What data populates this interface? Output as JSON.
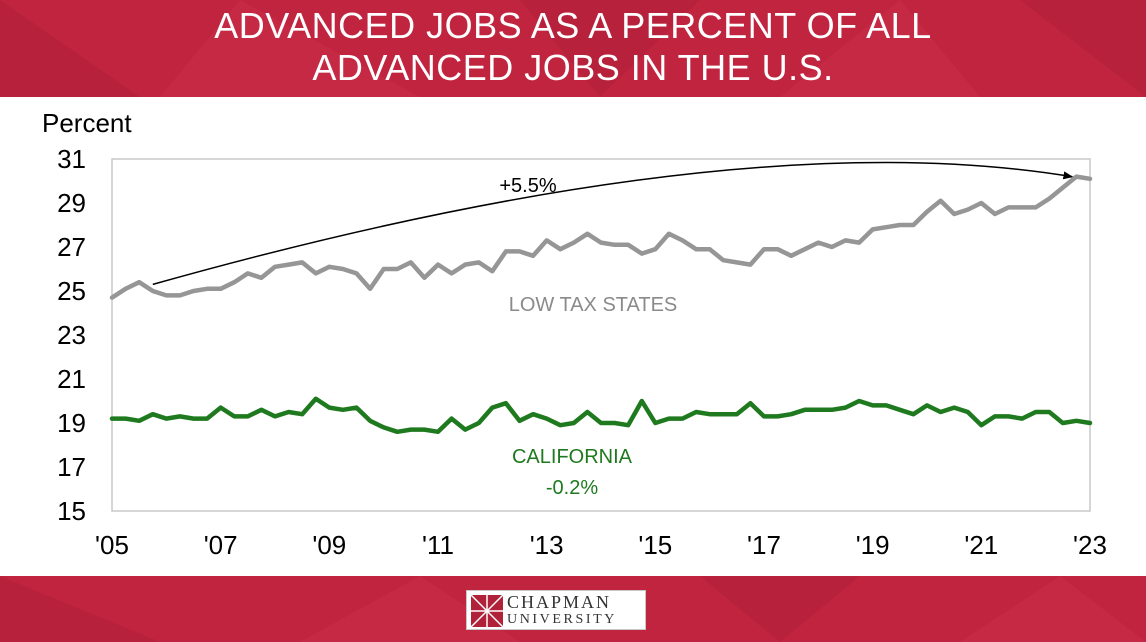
{
  "header": {
    "title_line1": "ADVANCED JOBS AS A PERCENT OF ALL",
    "title_line2": "ADVANCED JOBS IN THE U.S."
  },
  "footer": {
    "logo_line1": "CHAPMAN",
    "logo_line2": "UNIVERSITY"
  },
  "colors": {
    "banner": "#c0243f",
    "low_tax_series": "#969696",
    "california_series": "#1f7a1f",
    "annotation_arrow": "#000000"
  },
  "chart_data": {
    "type": "line",
    "title": "ADVANCED JOBS AS A PERCENT OF ALL ADVANCED JOBS IN THE U.S.",
    "ylabel": "Percent",
    "xlabel": "",
    "ylim": [
      15,
      31
    ],
    "xlim": [
      2005,
      2023
    ],
    "yticks": [
      "15",
      "17",
      "19",
      "21",
      "23",
      "25",
      "27",
      "29",
      "31"
    ],
    "xticks": [
      {
        "year": 2005,
        "label": "'05"
      },
      {
        "year": 2007,
        "label": "'07"
      },
      {
        "year": 2009,
        "label": "'09"
      },
      {
        "year": 2011,
        "label": "'11"
      },
      {
        "year": 2013,
        "label": "'13"
      },
      {
        "year": 2015,
        "label": "'15"
      },
      {
        "year": 2017,
        "label": "'17"
      },
      {
        "year": 2019,
        "label": "'19"
      },
      {
        "year": 2021,
        "label": "'21"
      },
      {
        "year": 2023,
        "label": "'23"
      }
    ],
    "grid": false,
    "legend": "none",
    "series": [
      {
        "name": "LOW TAX STATES",
        "color": "#969696",
        "x": [
          2005.0,
          2005.25,
          2005.5,
          2005.75,
          2006.0,
          2006.25,
          2006.5,
          2006.75,
          2007.0,
          2007.25,
          2007.5,
          2007.75,
          2008.0,
          2008.25,
          2008.5,
          2008.75,
          2009.0,
          2009.25,
          2009.5,
          2009.75,
          2010.0,
          2010.25,
          2010.5,
          2010.75,
          2011.0,
          2011.25,
          2011.5,
          2011.75,
          2012.0,
          2012.25,
          2012.5,
          2012.75,
          2013.0,
          2013.25,
          2013.5,
          2013.75,
          2014.0,
          2014.25,
          2014.5,
          2014.75,
          2015.0,
          2015.25,
          2015.5,
          2015.75,
          2016.0,
          2016.25,
          2016.5,
          2016.75,
          2017.0,
          2017.25,
          2017.5,
          2017.75,
          2018.0,
          2018.25,
          2018.5,
          2018.75,
          2019.0,
          2019.25,
          2019.5,
          2019.75,
          2020.0,
          2020.25,
          2020.5,
          2020.75,
          2021.0,
          2021.25,
          2021.5,
          2021.75,
          2022.0,
          2022.25,
          2022.5,
          2022.75,
          2023.0
        ],
        "values": [
          24.7,
          25.1,
          25.4,
          25.0,
          24.8,
          24.8,
          25.0,
          25.1,
          25.1,
          25.4,
          25.8,
          25.6,
          26.1,
          26.2,
          26.3,
          25.8,
          26.1,
          26.0,
          25.8,
          25.1,
          26.0,
          26.0,
          26.3,
          25.6,
          26.2,
          25.8,
          26.2,
          26.3,
          25.9,
          26.8,
          26.8,
          26.6,
          27.3,
          26.9,
          27.2,
          27.6,
          27.2,
          27.1,
          27.1,
          26.7,
          26.9,
          27.6,
          27.3,
          26.9,
          26.9,
          26.4,
          26.3,
          26.2,
          26.9,
          26.9,
          26.6,
          26.9,
          27.2,
          27.0,
          27.3,
          27.2,
          27.8,
          27.9,
          28.0,
          28.0,
          28.6,
          29.1,
          28.5,
          28.7,
          29.0,
          28.5,
          28.8,
          28.8,
          28.8,
          29.2,
          29.7,
          30.2,
          30.1
        ],
        "label": "LOW TAX STATES"
      },
      {
        "name": "CALIFORNIA",
        "color": "#1f7a1f",
        "x": [
          2005.0,
          2005.25,
          2005.5,
          2005.75,
          2006.0,
          2006.25,
          2006.5,
          2006.75,
          2007.0,
          2007.25,
          2007.5,
          2007.75,
          2008.0,
          2008.25,
          2008.5,
          2008.75,
          2009.0,
          2009.25,
          2009.5,
          2009.75,
          2010.0,
          2010.25,
          2010.5,
          2010.75,
          2011.0,
          2011.25,
          2011.5,
          2011.75,
          2012.0,
          2012.25,
          2012.5,
          2012.75,
          2013.0,
          2013.25,
          2013.5,
          2013.75,
          2014.0,
          2014.25,
          2014.5,
          2014.75,
          2015.0,
          2015.25,
          2015.5,
          2015.75,
          2016.0,
          2016.25,
          2016.5,
          2016.75,
          2017.0,
          2017.25,
          2017.5,
          2017.75,
          2018.0,
          2018.25,
          2018.5,
          2018.75,
          2019.0,
          2019.25,
          2019.5,
          2019.75,
          2020.0,
          2020.25,
          2020.5,
          2020.75,
          2021.0,
          2021.25,
          2021.5,
          2021.75,
          2022.0,
          2022.25,
          2022.5,
          2022.75,
          2023.0
        ],
        "values": [
          19.2,
          19.2,
          19.1,
          19.4,
          19.2,
          19.3,
          19.2,
          19.2,
          19.7,
          19.3,
          19.3,
          19.6,
          19.3,
          19.5,
          19.4,
          20.1,
          19.7,
          19.6,
          19.7,
          19.1,
          18.8,
          18.6,
          18.7,
          18.7,
          18.6,
          19.2,
          18.7,
          19.0,
          19.7,
          19.9,
          19.1,
          19.4,
          19.2,
          18.9,
          19.0,
          19.5,
          19.0,
          19.0,
          18.9,
          20.0,
          19.0,
          19.2,
          19.2,
          19.5,
          19.4,
          19.4,
          19.4,
          19.9,
          19.3,
          19.3,
          19.4,
          19.6,
          19.6,
          19.6,
          19.7,
          20.0,
          19.8,
          19.8,
          19.6,
          19.4,
          19.8,
          19.5,
          19.7,
          19.5,
          18.9,
          19.3,
          19.3,
          19.2,
          19.5,
          19.5,
          19.0,
          19.1,
          19.0
        ],
        "label": "CALIFORNIA",
        "change_label": "-0.2%"
      }
    ],
    "annotations": [
      {
        "text": "+5.5%",
        "from": {
          "x": 2005.75,
          "y": 25.3
        },
        "to": {
          "x": 2022.75,
          "y": 30.1
        },
        "type": "curved-arrow"
      }
    ]
  }
}
